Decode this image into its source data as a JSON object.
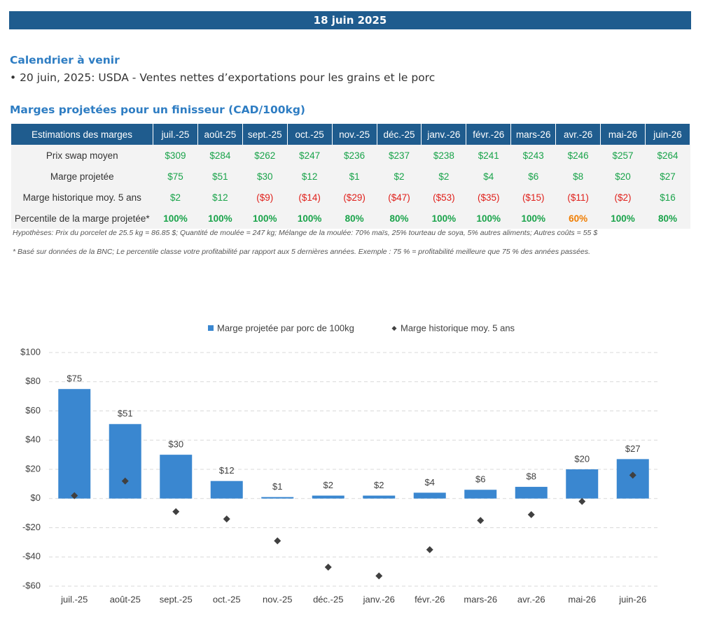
{
  "header": {
    "date": "18 juin 2025"
  },
  "calendar": {
    "title": "Calendrier à venir",
    "items": [
      "• 20 juin, 2025: USDA - Ventes nettes d’exportations pour les grains et le porc"
    ]
  },
  "margins": {
    "title": "Marges projetées pour un finisseur (CAD/100kg)",
    "table": {
      "header": [
        "Estimations des marges",
        "juil.-25",
        "août-25",
        "sept.-25",
        "oct.-25",
        "nov.-25",
        "déc.-25",
        "janv.-26",
        "févr.-26",
        "mars-26",
        "avr.-26",
        "mai-26",
        "juin-26"
      ],
      "rows": [
        {
          "label": "Prix swap moyen",
          "cells": [
            "$309",
            "$284",
            "$262",
            "$247",
            "$236",
            "$237",
            "$238",
            "$241",
            "$243",
            "$246",
            "$257",
            "$264"
          ],
          "colors": [
            "#19a34a",
            "#19a34a",
            "#19a34a",
            "#19a34a",
            "#19a34a",
            "#19a34a",
            "#19a34a",
            "#19a34a",
            "#19a34a",
            "#19a34a",
            "#19a34a",
            "#19a34a"
          ]
        },
        {
          "label": "Marge projetée",
          "cells": [
            "$75",
            "$51",
            "$30",
            "$12",
            "$1",
            "$2",
            "$2",
            "$4",
            "$6",
            "$8",
            "$20",
            "$27"
          ],
          "colors": [
            "#19a34a",
            "#19a34a",
            "#19a34a",
            "#19a34a",
            "#19a34a",
            "#19a34a",
            "#19a34a",
            "#19a34a",
            "#19a34a",
            "#19a34a",
            "#19a34a",
            "#19a34a"
          ]
        },
        {
          "label": "Marge historique moy. 5 ans",
          "cells": [
            "$2",
            "$12",
            "($9)",
            "($14)",
            "($29)",
            "($47)",
            "($53)",
            "($35)",
            "($15)",
            "($11)",
            "($2)",
            "$16"
          ],
          "colors": [
            "#19a34a",
            "#19a34a",
            "#e0201b",
            "#e0201b",
            "#e0201b",
            "#e0201b",
            "#e0201b",
            "#e0201b",
            "#e0201b",
            "#e0201b",
            "#e0201b",
            "#19a34a"
          ]
        },
        {
          "label": "Percentile de la marge projetée*",
          "cells": [
            "100%",
            "100%",
            "100%",
            "100%",
            "80%",
            "80%",
            "100%",
            "100%",
            "100%",
            "60%",
            "100%",
            "80%"
          ],
          "colors": [
            "#19a34a",
            "#19a34a",
            "#19a34a",
            "#19a34a",
            "#19a34a",
            "#19a34a",
            "#19a34a",
            "#19a34a",
            "#19a34a",
            "#f07d00",
            "#19a34a",
            "#19a34a"
          ]
        }
      ]
    },
    "notes": [
      "Hypothèses: Prix du porcelet de 25.5 kg = 86.85 $; Quantité de moulée = 247 kg; Mélange de la moulée: 70% maïs, 25% tourteau de soya, 5% autres aliments; Autres coûts = 55 $",
      "* Basé sur données de la BNC; Le percentile classe votre profitabilité par rapport aux 5 dernières années. Exemple : 75 % = profitabilité meilleure que 75 % des années passées."
    ]
  },
  "chart_data": {
    "type": "bar",
    "categories": [
      "juil.-25",
      "août-25",
      "sept.-25",
      "oct.-25",
      "nov.-25",
      "déc.-25",
      "janv.-26",
      "févr.-26",
      "mars-26",
      "avr.-26",
      "mai-26",
      "juin-26"
    ],
    "series": [
      {
        "name": "Marge projetée par porc de 100kg",
        "color": "#3a87d0",
        "values": [
          75,
          51,
          30,
          12,
          1,
          2,
          2,
          4,
          6,
          8,
          20,
          27
        ],
        "value_labels": [
          "$75",
          "$51",
          "$30",
          "$12",
          "$1",
          "$2",
          "$2",
          "$4",
          "$6",
          "$8",
          "$20",
          "$27"
        ]
      },
      {
        "name": "Marge historique moy. 5 ans",
        "color": "#404040",
        "marker": "diamond",
        "values": [
          2,
          12,
          -9,
          -14,
          -29,
          -47,
          -53,
          -35,
          -15,
          -11,
          -2,
          16
        ]
      }
    ],
    "ylim": [
      -60,
      100
    ],
    "yticks": [
      {
        "value": -60,
        "label": "-$60"
      },
      {
        "value": -40,
        "label": "-$40"
      },
      {
        "value": -20,
        "label": "-$20"
      },
      {
        "value": 0,
        "label": "$0"
      },
      {
        "value": 20,
        "label": "$20"
      },
      {
        "value": 40,
        "label": "$40"
      },
      {
        "value": 60,
        "label": "$60"
      },
      {
        "value": 80,
        "label": "$80"
      },
      {
        "value": 100,
        "label": "$100"
      }
    ],
    "grid": true,
    "legend": "top"
  }
}
